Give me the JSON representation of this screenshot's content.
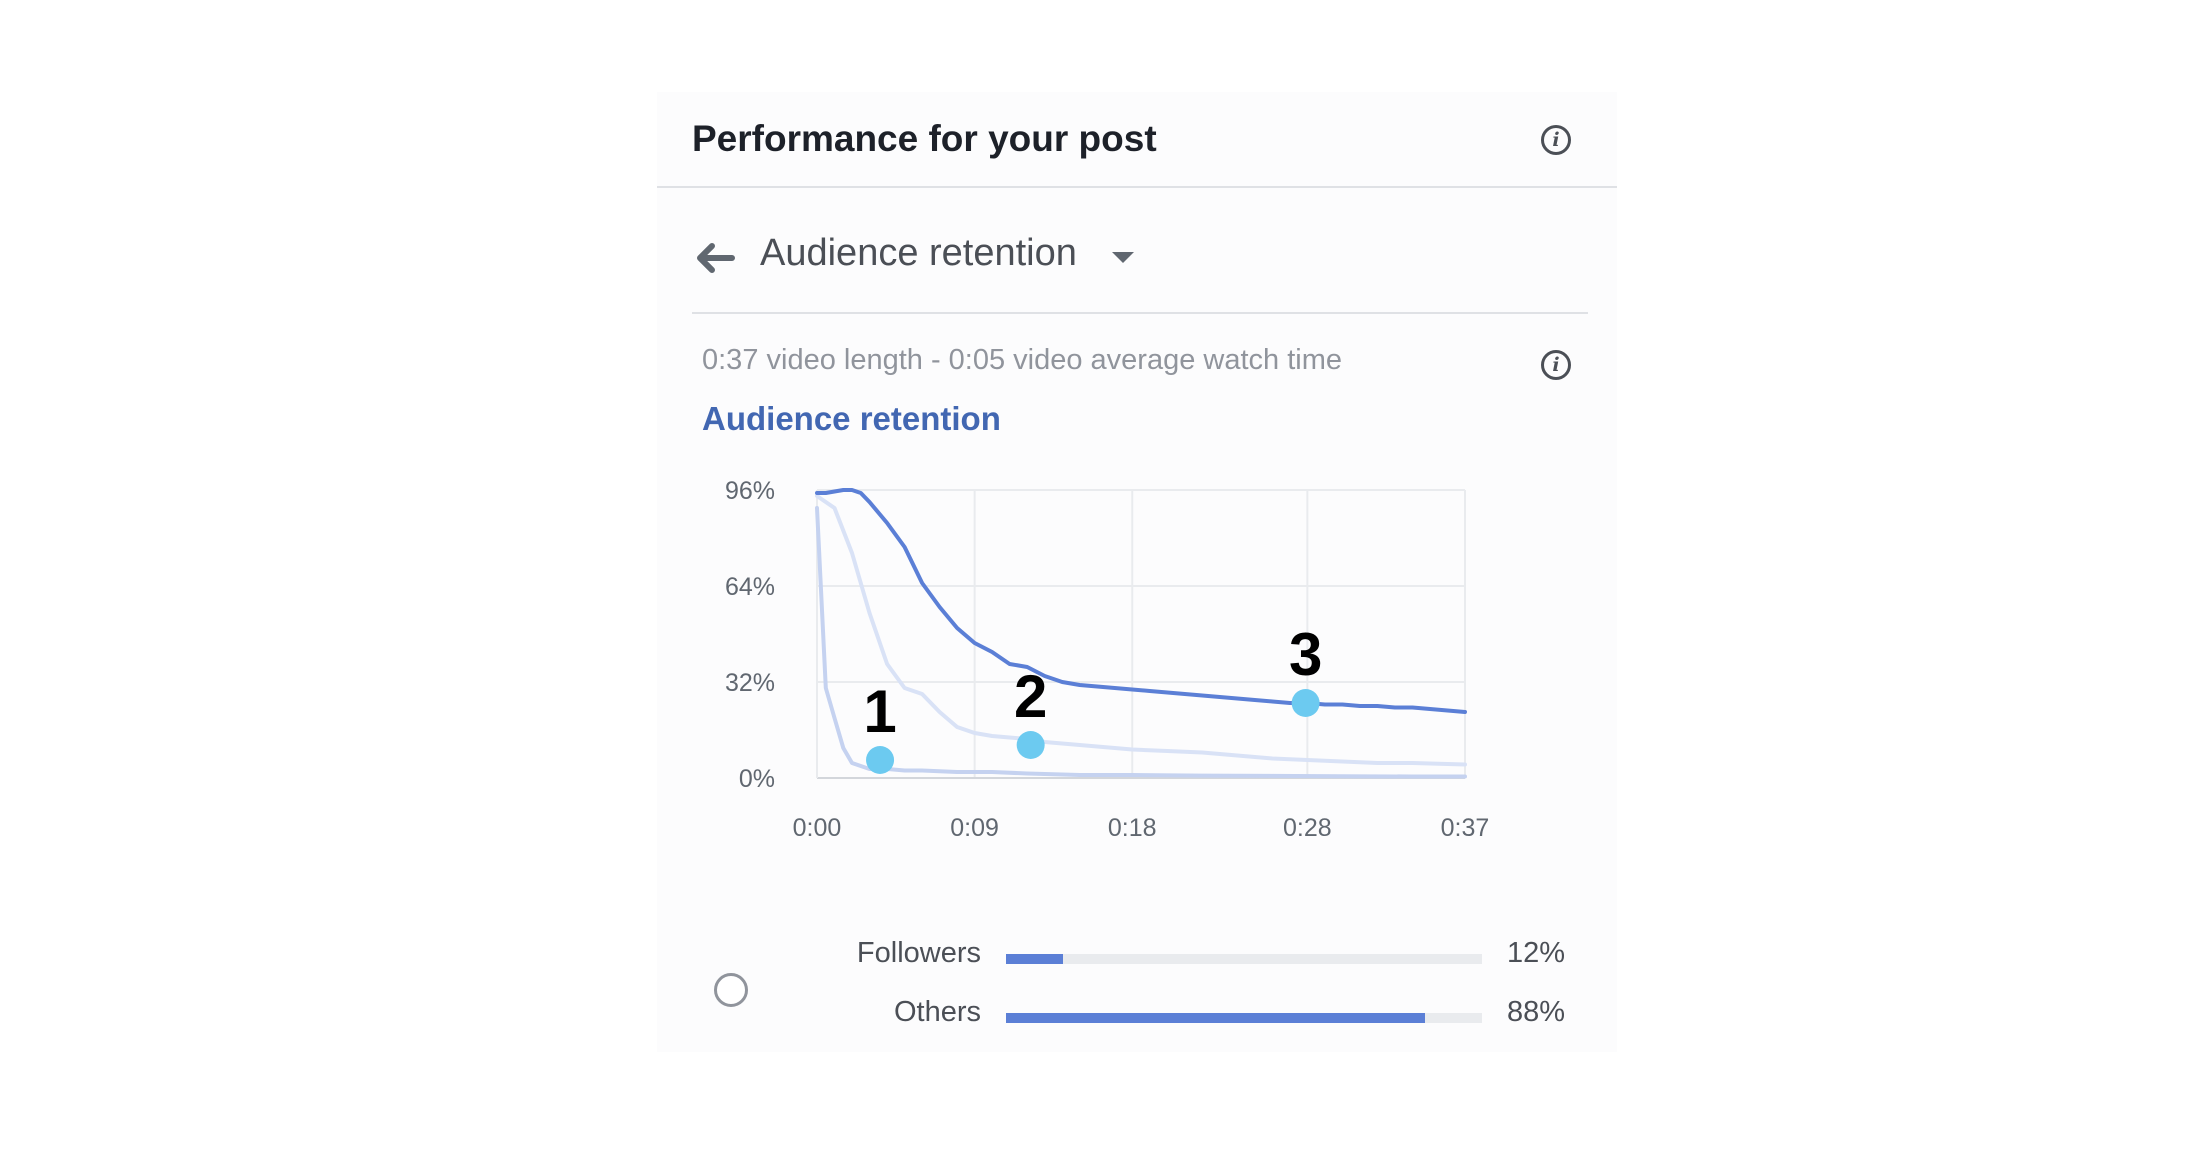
{
  "card": {
    "title": "Performance for your post"
  },
  "metric_selector": {
    "label": "Audience retention"
  },
  "summary": "0:37 video length - 0:05 video average watch time",
  "section_title": "Audience retention",
  "colors": {
    "primary_line": "#5b7fd6",
    "secondary_line": "#d9e2f6",
    "tertiary_line": "#c5d2f0",
    "marker": "#6ccaf0",
    "title_blue": "#4267b2"
  },
  "chart_data": {
    "type": "line",
    "title": "",
    "xlabel": "",
    "ylabel": "",
    "x_ticks": [
      "0:00",
      "0:09",
      "0:18",
      "0:28",
      "0:37"
    ],
    "y_ticks": [
      "0%",
      "32%",
      "64%",
      "96%"
    ],
    "xlim": [
      0,
      37
    ],
    "ylim": [
      0,
      96
    ],
    "grid": true,
    "series": [
      {
        "x": [
          0,
          0.5,
          1,
          1.5,
          2,
          2.5,
          3,
          4,
          5,
          6,
          7,
          8,
          9,
          10,
          11,
          12,
          13,
          14,
          15,
          16,
          17,
          18,
          19,
          20,
          21,
          22,
          23,
          24,
          25,
          26,
          27,
          28,
          29,
          30,
          31,
          32,
          33,
          34,
          35,
          36,
          37
        ],
        "y": [
          95,
          95,
          95.5,
          96,
          96,
          95,
          92,
          85,
          77,
          65,
          57,
          50,
          45,
          42,
          38,
          37,
          34,
          32,
          31,
          30.5,
          30,
          29.5,
          29,
          28.5,
          28,
          27.5,
          27,
          26.5,
          26,
          25.5,
          25,
          25,
          24.5,
          24.5,
          24,
          24,
          23.5,
          23.5,
          23,
          22.5,
          22
        ]
      },
      {
        "x": [
          0,
          1,
          2,
          3,
          4,
          5,
          6,
          7,
          8,
          9,
          10,
          11,
          12,
          13,
          14,
          15,
          16,
          17,
          18,
          20,
          22,
          24,
          26,
          28,
          30,
          32,
          34,
          37
        ],
        "y": [
          94,
          90,
          75,
          55,
          38,
          30,
          28,
          22,
          17,
          15,
          14,
          13.5,
          13,
          12,
          11.5,
          11,
          10.5,
          10,
          9.5,
          9,
          8.5,
          7.5,
          6.5,
          6,
          5.5,
          5,
          5,
          4.5
        ]
      },
      {
        "x": [
          0,
          0.25,
          0.5,
          1,
          1.5,
          2,
          3,
          4,
          5,
          6,
          8,
          10,
          12,
          15,
          18,
          22,
          26,
          30,
          34,
          37
        ],
        "y": [
          90,
          60,
          30,
          20,
          10,
          5,
          3,
          3,
          2.5,
          2.5,
          2,
          2,
          1.5,
          1,
          1,
          0.8,
          0.7,
          0.6,
          0.5,
          0.5
        ]
      }
    ],
    "annotations": [
      {
        "label": "1",
        "x": 3.6,
        "y": 6
      },
      {
        "label": "2",
        "x": 12.2,
        "y": 11
      },
      {
        "label": "3",
        "x": 27.9,
        "y": 25
      }
    ]
  },
  "breakdown": {
    "rows": [
      {
        "label": "Followers",
        "value_text": "12%",
        "fraction": 0.12
      },
      {
        "label": "Others",
        "value_text": "88%",
        "fraction": 0.88
      }
    ]
  }
}
